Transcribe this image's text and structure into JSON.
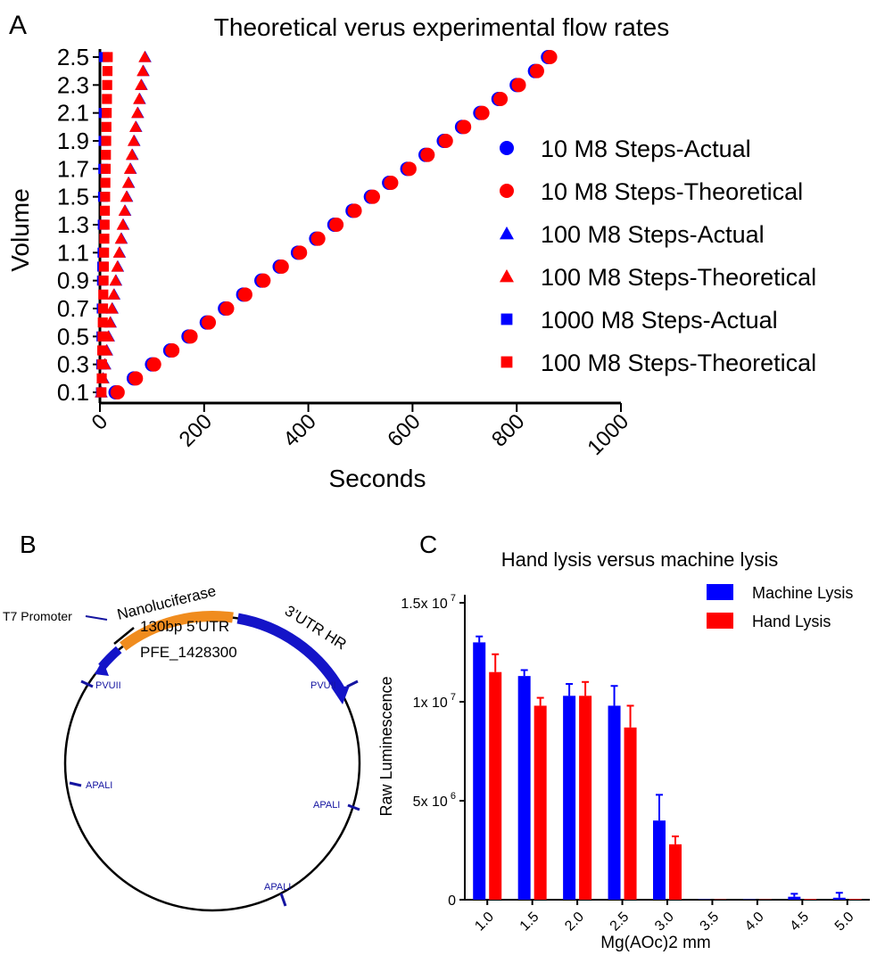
{
  "panels": {
    "a": {
      "letter": "A"
    },
    "b": {
      "letter": "B"
    },
    "c": {
      "letter": "C"
    }
  },
  "chart_data": [
    {
      "type": "scatter",
      "title": "Theoretical verus experimental flow rates",
      "xlabel": "Seconds",
      "ylabel": "Volume",
      "xlim": [
        0,
        1000
      ],
      "ylim": [
        0.1,
        2.5
      ],
      "x_ticks": [
        "0",
        "200",
        "400",
        "600",
        "800",
        "1000"
      ],
      "y_ticks": [
        "0.1",
        "0.3",
        "0.5",
        "0.7",
        "0.9",
        "1.1",
        "1.3",
        "1.5",
        "1.7",
        "1.9",
        "2.1",
        "2.3",
        "2.5"
      ],
      "grid": false,
      "legend_position": "right",
      "colors": {
        "actual": "#0000ff",
        "theoretical": "#ff0000"
      },
      "series": [
        {
          "name": "10 M8 Steps-Actual",
          "marker": "circle",
          "color": "#0000ff",
          "x": [
            30,
            65,
            100,
            135,
            170,
            205,
            240,
            275,
            310,
            345,
            380,
            415,
            450,
            485,
            520,
            555,
            590,
            625,
            660,
            695,
            730,
            765,
            800,
            835,
            860
          ],
          "y": [
            0.1,
            0.2,
            0.3,
            0.4,
            0.5,
            0.6,
            0.7,
            0.8,
            0.9,
            1.0,
            1.1,
            1.2,
            1.3,
            1.4,
            1.5,
            1.6,
            1.7,
            1.8,
            1.9,
            2.0,
            2.1,
            2.2,
            2.3,
            2.4,
            2.5
          ]
        },
        {
          "name": "10 M8 Steps-Theoretical",
          "marker": "circle",
          "color": "#ff0000",
          "x": [
            34,
            69,
            104,
            139,
            174,
            209,
            244,
            279,
            314,
            349,
            384,
            419,
            454,
            489,
            524,
            559,
            594,
            629,
            664,
            699,
            734,
            769,
            804,
            839,
            864
          ],
          "y": [
            0.1,
            0.2,
            0.3,
            0.4,
            0.5,
            0.6,
            0.7,
            0.8,
            0.9,
            1.0,
            1.1,
            1.2,
            1.3,
            1.4,
            1.5,
            1.6,
            1.7,
            1.8,
            1.9,
            2.0,
            2.1,
            2.2,
            2.3,
            2.4,
            2.5
          ]
        },
        {
          "name": "100 M8 Steps-Actual",
          "marker": "triangle",
          "color": "#0000ff",
          "x": [
            3,
            6.5,
            10,
            13.5,
            17,
            20.5,
            24,
            27.5,
            31,
            34.5,
            38,
            41.5,
            45,
            48.5,
            52,
            55.5,
            59,
            62.5,
            66,
            69.5,
            73,
            76.5,
            80,
            83.5,
            87
          ],
          "y": [
            0.1,
            0.2,
            0.3,
            0.4,
            0.5,
            0.6,
            0.7,
            0.8,
            0.9,
            1.0,
            1.1,
            1.2,
            1.3,
            1.4,
            1.5,
            1.6,
            1.7,
            1.8,
            1.9,
            2.0,
            2.1,
            2.2,
            2.3,
            2.4,
            2.5
          ]
        },
        {
          "name": "100 M8 Steps-Theoretical",
          "marker": "triangle",
          "color": "#ff0000",
          "x": [
            2,
            5.5,
            9,
            12.5,
            16,
            19.5,
            23,
            26.5,
            30,
            33.5,
            37,
            40.5,
            44,
            47.5,
            51,
            54.5,
            58,
            61.5,
            65,
            68.5,
            72,
            75.5,
            79,
            82.5,
            86
          ],
          "y": [
            0.1,
            0.2,
            0.3,
            0.4,
            0.5,
            0.6,
            0.7,
            0.8,
            0.9,
            1.0,
            1.1,
            1.2,
            1.3,
            1.4,
            1.5,
            1.6,
            1.7,
            1.8,
            1.9,
            2.0,
            2.1,
            2.2,
            2.3,
            2.4,
            2.5
          ]
        },
        {
          "name": "1000 M8 Steps-Actual",
          "marker": "square",
          "color": "#0000ff",
          "x": [
            2,
            2.5,
            3,
            3.5,
            4,
            4.5,
            5,
            5.5,
            6,
            6.5,
            7,
            7.5,
            8
          ],
          "y": [
            0.1,
            0.3,
            0.5,
            0.7,
            0.9,
            1.0,
            1.1,
            1.3,
            1.5,
            1.7,
            1.9,
            2.1,
            2.5
          ]
        },
        {
          "name": "100 M8 Steps-Theoretical",
          "marker": "square",
          "color": "#ff0000",
          "x": [
            3,
            3.5,
            4,
            4.5,
            5,
            5.5,
            6,
            6.5,
            7,
            7.5,
            8,
            8.5,
            9,
            9.5,
            10,
            10.5,
            11,
            11.5,
            12,
            12.5,
            13,
            13.5,
            14,
            14.5,
            15
          ],
          "y": [
            0.1,
            0.2,
            0.3,
            0.4,
            0.5,
            0.6,
            0.7,
            0.8,
            0.9,
            1.0,
            1.1,
            1.2,
            1.3,
            1.4,
            1.5,
            1.6,
            1.7,
            1.8,
            1.9,
            2.0,
            2.1,
            2.2,
            2.3,
            2.4,
            2.5
          ]
        }
      ]
    },
    {
      "type": "diagram",
      "labels": {
        "nanoluciferase": "Nanoluciferase",
        "utr3": "3’UTR HR",
        "t7": "T7 Promoter",
        "utr5": "130bp 5’UTR",
        "pfe": "PFE_1428300",
        "pvuii_left": "PVUII",
        "pvuii_right": "PVUII",
        "apali_left": "APALI",
        "apali_right": "APALI",
        "apali_bottom": "APALI"
      },
      "colors": {
        "nanoluciferase": "#f08c1e",
        "utr3": "#1414c8",
        "ring": "#000000",
        "sites": "#1414a0"
      }
    },
    {
      "type": "bar",
      "title": "Hand lysis versus machine lysis",
      "xlabel": "Mg(AOc)2 mm",
      "ylabel": "Raw Luminescence",
      "categories": [
        "1.0",
        "1.5",
        "2.0",
        "2.5",
        "3.0",
        "3.5",
        "4.0",
        "4.5",
        "5.0"
      ],
      "ylim": [
        0,
        15000000
      ],
      "y_ticks": [
        {
          "value": 0,
          "label": "0"
        },
        {
          "value": 5000000,
          "label": "5x 10",
          "exp": "6"
        },
        {
          "value": 10000000,
          "label": "1x 10",
          "exp": "7"
        },
        {
          "value": 15000000,
          "label": "1.5x 10",
          "exp": "7"
        }
      ],
      "grid": false,
      "legend_position": "top-right",
      "series": [
        {
          "name": "Machine Lysis",
          "color": "#0000ff",
          "values": [
            13000000,
            11300000,
            10300000,
            9800000,
            4000000,
            20000,
            20000,
            150000,
            100000
          ],
          "errors": [
            300000,
            300000,
            600000,
            1000000,
            1300000,
            0,
            0,
            150000,
            250000
          ]
        },
        {
          "name": "Hand Lysis",
          "color": "#ff0000",
          "values": [
            11500000,
            9800000,
            10300000,
            8700000,
            2800000,
            20000,
            20000,
            40000,
            40000
          ],
          "errors": [
            900000,
            400000,
            700000,
            1100000,
            400000,
            0,
            0,
            0,
            0
          ]
        }
      ]
    }
  ]
}
